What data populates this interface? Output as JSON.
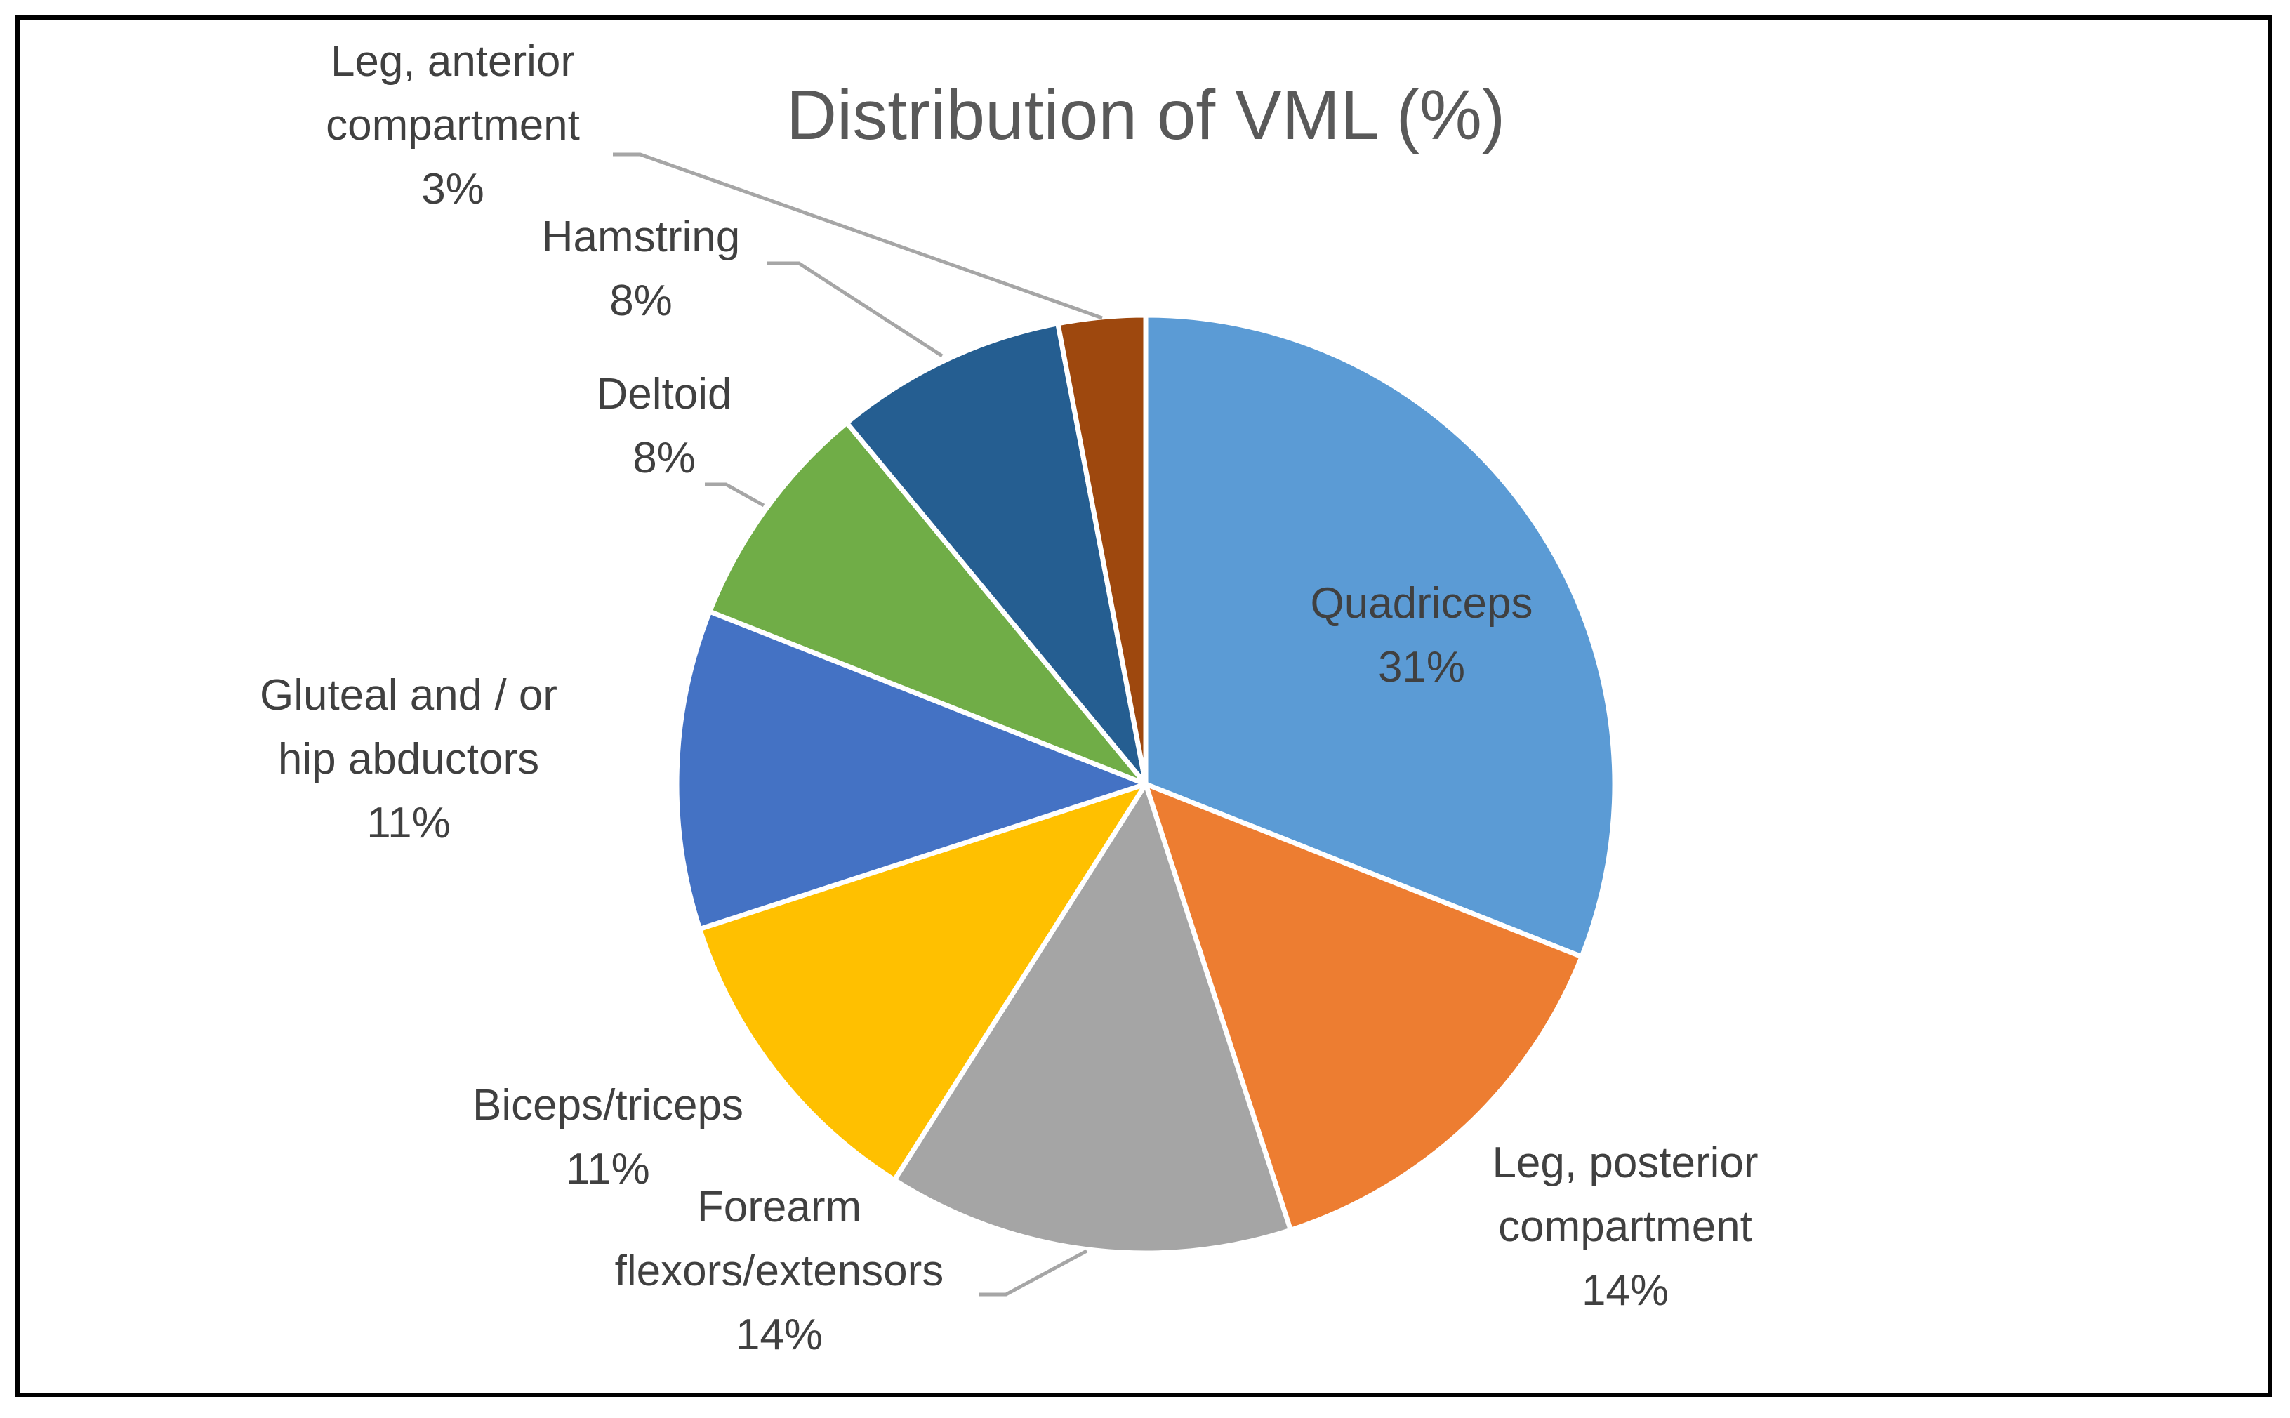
{
  "chart_data": {
    "type": "pie",
    "title": "Distribution of VML (%)",
    "slices": [
      {
        "name": "Quadriceps",
        "value": 31,
        "label_lines": [
          "Quadriceps"
        ],
        "value_label": "31%",
        "color": "#5B9BD5"
      },
      {
        "name": "Leg, posterior compartment",
        "value": 14,
        "label_lines": [
          "Leg, posterior",
          "compartment"
        ],
        "value_label": "14%",
        "color": "#ED7D31"
      },
      {
        "name": "Forearm flexors/extensors",
        "value": 14,
        "label_lines": [
          "Forearm",
          "flexors/extensors"
        ],
        "value_label": "14%",
        "color": "#A5A5A5"
      },
      {
        "name": "Biceps/triceps",
        "value": 11,
        "label_lines": [
          "Biceps/triceps"
        ],
        "value_label": "11%",
        "color": "#FFC000"
      },
      {
        "name": "Gluteal and / or hip abductors",
        "value": 11,
        "label_lines": [
          "Gluteal and / or",
          "hip abductors"
        ],
        "value_label": "11%",
        "color": "#4472C4"
      },
      {
        "name": "Deltoid",
        "value": 8,
        "label_lines": [
          "Deltoid"
        ],
        "value_label": "8%",
        "color": "#70AD47"
      },
      {
        "name": "Hamstring",
        "value": 8,
        "label_lines": [
          "Hamstring"
        ],
        "value_label": "8%",
        "color": "#255E91"
      },
      {
        "name": "Leg, anterior compartment",
        "value": 3,
        "label_lines": [
          "Leg, anterior",
          "compartment"
        ],
        "value_label": "3%",
        "color": "#9E480E"
      }
    ]
  }
}
